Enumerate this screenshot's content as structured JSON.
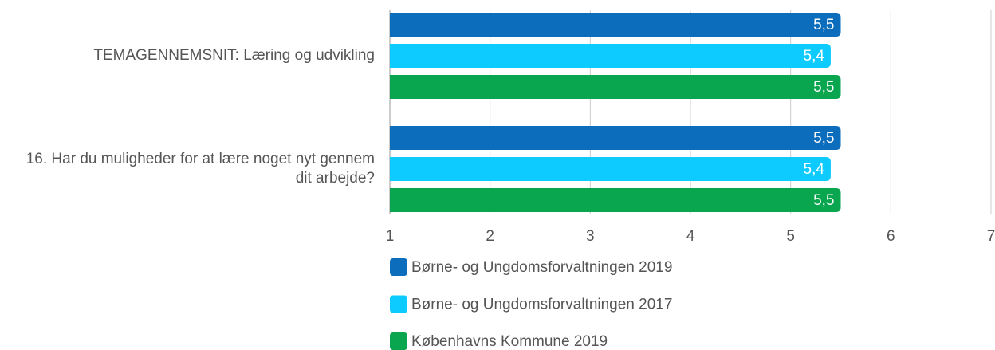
{
  "chart_data": {
    "type": "barh",
    "categories": [
      "TEMAGENNEMSNIT: Læring og udvikling",
      "16. Har du muligheder for at lære noget nyt gennem dit arbejde?"
    ],
    "series": [
      {
        "name": "Børne- og Ungdomsforvaltningen 2019",
        "color": "#0b6dbb",
        "values": [
          5.5,
          5.5
        ],
        "value_labels": [
          "5,5",
          "5,5"
        ]
      },
      {
        "name": "Børne- og Ungdomsforvaltningen 2017",
        "color": "#0dcbff",
        "values": [
          5.4,
          5.4
        ],
        "value_labels": [
          "5,4",
          "5,4"
        ]
      },
      {
        "name": "Københavns Kommune 2019",
        "color": "#0aa54f",
        "values": [
          5.5,
          5.5
        ],
        "value_labels": [
          "5,5",
          "5,5"
        ]
      }
    ],
    "xlim": [
      1,
      7
    ],
    "xticks": [
      1,
      2,
      3,
      4,
      5,
      6,
      7
    ],
    "grid": true,
    "legend": "bottom"
  }
}
